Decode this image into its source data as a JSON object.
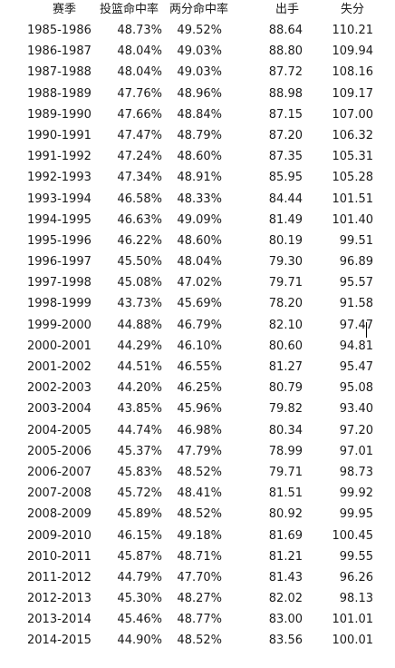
{
  "headers": [
    "赛季",
    "投篮命中率",
    "两分命中率",
    "出手",
    "失分"
  ],
  "rows": [
    [
      "1985-1986",
      "48.73%",
      "49.52%",
      "88.64",
      "110.21"
    ],
    [
      "1986-1987",
      "48.04%",
      "49.03%",
      "88.80",
      "109.94"
    ],
    [
      "1987-1988",
      "48.04%",
      "49.03%",
      "87.72",
      "108.16"
    ],
    [
      "1988-1989",
      "47.76%",
      "48.96%",
      "88.98",
      "109.17"
    ],
    [
      "1989-1990",
      "47.66%",
      "48.84%",
      "87.15",
      "107.00"
    ],
    [
      "1990-1991",
      "47.47%",
      "48.79%",
      "87.20",
      "106.32"
    ],
    [
      "1991-1992",
      "47.24%",
      "48.60%",
      "87.35",
      "105.31"
    ],
    [
      "1992-1993",
      "47.34%",
      "48.91%",
      "85.95",
      "105.28"
    ],
    [
      "1993-1994",
      "46.58%",
      "48.33%",
      "84.44",
      "101.51"
    ],
    [
      "1994-1995",
      "46.63%",
      "49.09%",
      "81.49",
      "101.40"
    ],
    [
      "1995-1996",
      "46.22%",
      "48.60%",
      "80.19",
      "99.51"
    ],
    [
      "1996-1997",
      "45.50%",
      "48.04%",
      "79.30",
      "96.89"
    ],
    [
      "1997-1998",
      "45.08%",
      "47.02%",
      "79.71",
      "95.57"
    ],
    [
      "1998-1999",
      "43.73%",
      "45.69%",
      "78.20",
      "91.58"
    ],
    [
      "1999-2000",
      "44.88%",
      "46.79%",
      "82.10",
      "97.47"
    ],
    [
      "2000-2001",
      "44.29%",
      "46.10%",
      "80.60",
      "94.81"
    ],
    [
      "2001-2002",
      "44.51%",
      "46.55%",
      "81.27",
      "95.47"
    ],
    [
      "2002-2003",
      "44.20%",
      "46.25%",
      "80.79",
      "95.08"
    ],
    [
      "2003-2004",
      "43.85%",
      "45.96%",
      "79.82",
      "93.40"
    ],
    [
      "2004-2005",
      "44.74%",
      "46.98%",
      "80.34",
      "97.20"
    ],
    [
      "2005-2006",
      "45.37%",
      "47.79%",
      "78.99",
      "97.01"
    ],
    [
      "2006-2007",
      "45.83%",
      "48.52%",
      "79.71",
      "98.73"
    ],
    [
      "2007-2008",
      "45.72%",
      "48.41%",
      "81.51",
      "99.92"
    ],
    [
      "2008-2009",
      "45.89%",
      "48.52%",
      "80.92",
      "99.95"
    ],
    [
      "2009-2010",
      "46.15%",
      "49.18%",
      "81.69",
      "100.45"
    ],
    [
      "2010-2011",
      "45.87%",
      "48.71%",
      "81.21",
      "99.55"
    ],
    [
      "2011-2012",
      "44.79%",
      "47.70%",
      "81.43",
      "96.26"
    ],
    [
      "2012-2013",
      "45.30%",
      "48.27%",
      "82.02",
      "98.13"
    ],
    [
      "2013-2014",
      "45.46%",
      "48.77%",
      "83.00",
      "101.01"
    ],
    [
      "2014-2015",
      "44.90%",
      "48.52%",
      "83.56",
      "100.01"
    ]
  ]
}
